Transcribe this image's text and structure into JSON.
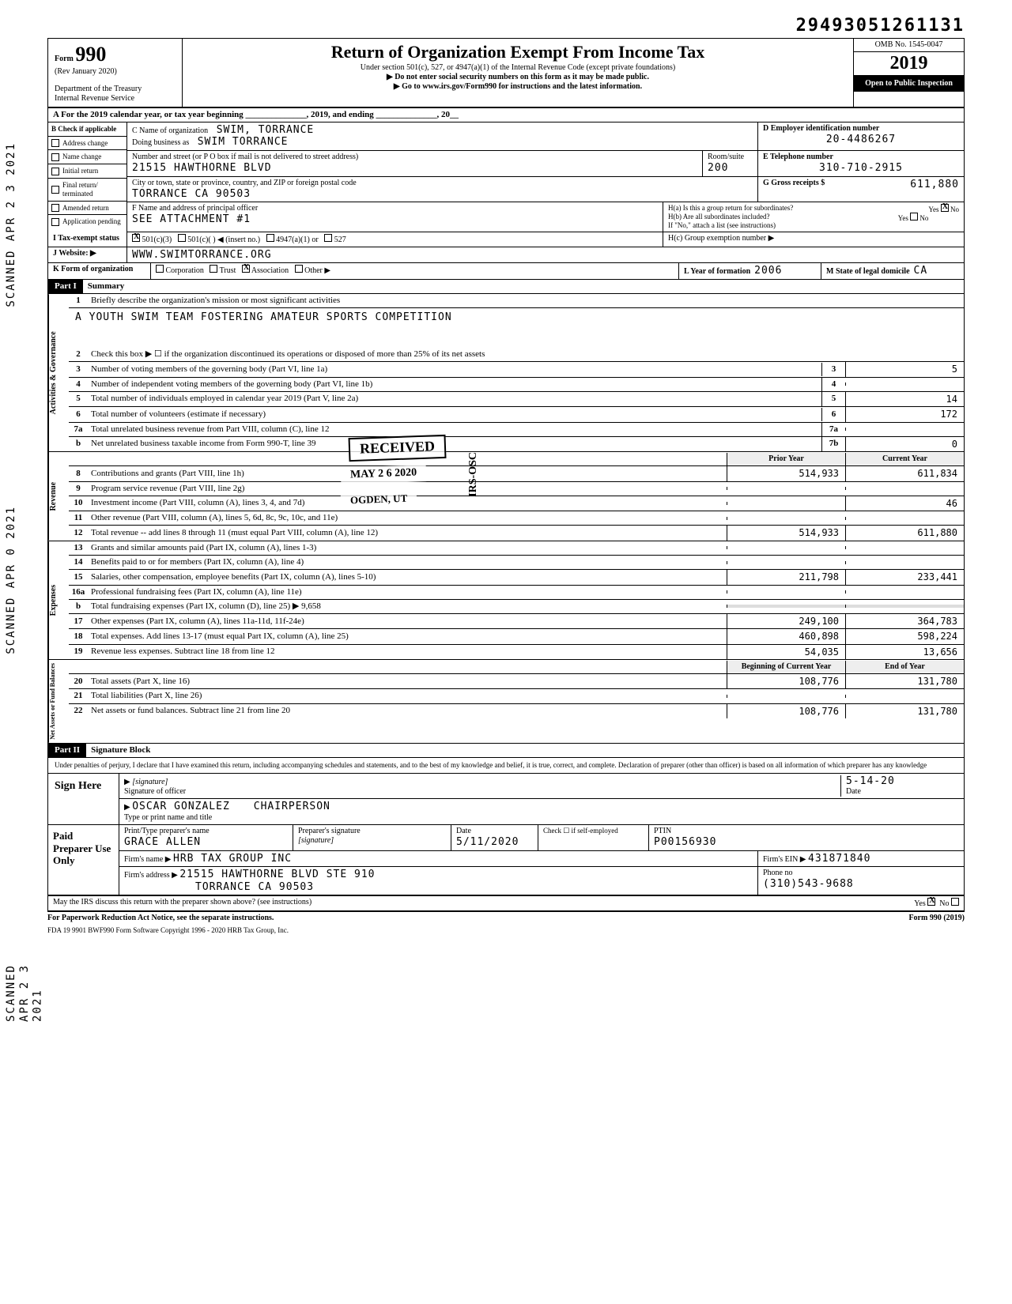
{
  "top_id": "29493051261131",
  "header": {
    "form_label": "Form",
    "form_number": "990",
    "rev": "(Rev January 2020)",
    "dept": "Department of the Treasury",
    "irs": "Internal Revenue Service",
    "title": "Return of Organization Exempt From Income Tax",
    "sub1": "Under section 501(c), 527, or 4947(a)(1) of the Internal Revenue Code (except private foundations)",
    "sub2": "▶ Do not enter social security numbers on this form as it may be made public.",
    "sub3": "▶ Go to www.irs.gov/Form990 for instructions and the latest information.",
    "omb": "OMB No. 1545-0047",
    "year": "2019",
    "open": "Open to Public Inspection"
  },
  "row_a": "A   For the 2019 calendar year, or tax year beginning ______________, 2019, and ending ______________, 20__",
  "col_b": {
    "header": "B Check if applicable",
    "items": [
      "Address change",
      "Name change",
      "Initial return",
      "Final return/ terminated",
      "Amended return",
      "Application pending"
    ]
  },
  "org": {
    "c_label": "C Name of organization",
    "name": "SWIM, TORRANCE",
    "dba_label": "Doing business as",
    "dba": "SWIM TORRANCE",
    "addr_label": "Number and street (or P O  box if mail is not delivered to street address)",
    "addr": "21515 HAWTHORNE BLVD",
    "room_label": "Room/suite",
    "room": "200",
    "city_label": "City or town, state or province, country, and ZIP or foreign postal code",
    "city": "TORRANCE CA 90503",
    "f_label": "F  Name and address of principal officer",
    "f_val": "SEE ATTACHMENT #1"
  },
  "d": {
    "label": "D Employer identification number",
    "val": "20-4486267"
  },
  "e": {
    "label": "E Telephone number",
    "val": "310-710-2915"
  },
  "g": {
    "label": "G Gross receipts $",
    "val": "611,880"
  },
  "h": {
    "a": "H(a)  Is this a group return for subordinates?",
    "b": "H(b)  Are all subordinates included?",
    "note": "If \"No,\" attach a list (see instructions)",
    "c": "H(c)  Group exemption number  ▶"
  },
  "i": {
    "label": "I   Tax-exempt status",
    "opts": [
      "501(c)(3)",
      "501(c)(",
      "4947(a)(1) or",
      "527"
    ],
    "insert": ") ◀ (insert no.)"
  },
  "j": {
    "label": "J  Website: ▶",
    "val": "WWW.SWIMTORRANCE.ORG"
  },
  "k": {
    "label": "K Form of organization",
    "opts": [
      "Corporation",
      "Trust",
      "Association",
      "Other ▶"
    ],
    "l_label": "L Year of formation",
    "l_val": "2006",
    "m_label": "M State of legal domicile",
    "m_val": "CA"
  },
  "part1": {
    "label": "Part I",
    "title": "Summary"
  },
  "mission": {
    "line1_num": "1",
    "line1": "Briefly describe the organization's mission or most significant activities",
    "text": "A YOUTH SWIM TEAM FOSTERING AMATEUR SPORTS COMPETITION"
  },
  "governance": {
    "label": "Activities & Governance",
    "rows": [
      {
        "n": "2",
        "desc": "Check this box ▶ ☐  if the organization discontinued its operations or disposed of more than 25% of its net assets"
      },
      {
        "n": "3",
        "desc": "Number of voting members of the governing body (Part VI, line 1a)",
        "box": "3",
        "v": "5"
      },
      {
        "n": "4",
        "desc": "Number of independent voting members of the governing body (Part VI, line 1b)",
        "box": "4",
        "v": ""
      },
      {
        "n": "5",
        "desc": "Total number of individuals employed in calendar year 2019 (Part V, line 2a)",
        "box": "5",
        "v": "14"
      },
      {
        "n": "6",
        "desc": "Total number of volunteers (estimate if necessary)",
        "box": "6",
        "v": "172"
      },
      {
        "n": "7a",
        "desc": "Total unrelated business revenue from Part VIII, column (C), line 12",
        "box": "7a",
        "v": ""
      },
      {
        "n": "b",
        "desc": "Net unrelated business taxable income from Form 990-T, line 39",
        "box": "7b",
        "v": "0"
      }
    ]
  },
  "revenue": {
    "label": "Revenue",
    "hdr_prior": "Prior Year",
    "hdr_curr": "Current Year",
    "rows": [
      {
        "n": "8",
        "desc": "Contributions and grants (Part VIII, line 1h)",
        "prior": "514,933",
        "curr": "611,834"
      },
      {
        "n": "9",
        "desc": "Program service revenue (Part VIII, line 2g)",
        "prior": "",
        "curr": ""
      },
      {
        "n": "10",
        "desc": "Investment income (Part VIII, column (A), lines 3, 4, and 7d)",
        "prior": "",
        "curr": "46"
      },
      {
        "n": "11",
        "desc": "Other revenue (Part VIII, column (A), lines 5, 6d, 8c, 9c, 10c, and 11e)",
        "prior": "",
        "curr": ""
      },
      {
        "n": "12",
        "desc": "Total revenue -- add lines 8 through 11 (must equal Part VIII, column (A), line 12)",
        "prior": "514,933",
        "curr": "611,880"
      }
    ]
  },
  "stamps": {
    "received": "RECEIVED",
    "date": "MAY 2 6 2020",
    "ogden": "OGDEN, UT",
    "irs_osc": "IRS-OSC",
    "side1": "SCANNED APR 2 3 2021",
    "side2": "SCANNED APR  0  2021",
    "side3": "SCANNED APR 2 3 2021"
  },
  "expenses": {
    "label": "Expenses",
    "rows": [
      {
        "n": "13",
        "desc": "Grants and similar amounts paid (Part IX, column (A), lines 1-3)",
        "prior": "",
        "curr": ""
      },
      {
        "n": "14",
        "desc": "Benefits paid to or for members (Part IX, column (A), line 4)",
        "prior": "",
        "curr": ""
      },
      {
        "n": "15",
        "desc": "Salaries, other compensation, employee benefits (Part IX, column (A), lines 5-10)",
        "prior": "211,798",
        "curr": "233,441"
      },
      {
        "n": "16a",
        "desc": "Professional fundraising fees (Part IX, column (A), line 11e)",
        "prior": "",
        "curr": ""
      },
      {
        "n": "b",
        "desc": "Total fundraising expenses (Part IX, column (D), line 25)   ▶            9,658",
        "prior": "shaded",
        "curr": "shaded"
      },
      {
        "n": "17",
        "desc": "Other expenses (Part IX, column (A), lines 11a-11d, 11f-24e)",
        "prior": "249,100",
        "curr": "364,783"
      },
      {
        "n": "18",
        "desc": "Total expenses. Add lines 13-17 (must equal Part IX, column (A), line 25)",
        "prior": "460,898",
        "curr": "598,224"
      },
      {
        "n": "19",
        "desc": "Revenue less expenses. Subtract line 18 from line 12",
        "prior": "54,035",
        "curr": "13,656"
      }
    ]
  },
  "netassets": {
    "label": "Net Assets or Fund Balances",
    "hdr_prior": "Beginning of Current Year",
    "hdr_curr": "End of Year",
    "rows": [
      {
        "n": "20",
        "desc": "Total assets (Part X, line 16)",
        "prior": "108,776",
        "curr": "131,780"
      },
      {
        "n": "21",
        "desc": "Total liabilities (Part X, line 26)",
        "prior": "",
        "curr": ""
      },
      {
        "n": "22",
        "desc": "Net assets or fund balances. Subtract line 21 from line 20",
        "prior": "108,776",
        "curr": "131,780"
      }
    ]
  },
  "part2": {
    "label": "Part II",
    "title": "Signature Block"
  },
  "perjury": "Under penalties of perjury, I declare that I have examined this return, including accompanying schedules and statements, and to the best of my knowledge and belief, it is true, correct, and complete. Declaration of preparer (other than officer) is based on all information of which preparer has any knowledge",
  "sign": {
    "here": "Sign Here",
    "sig_label": "Signature of officer",
    "date_label": "Date",
    "date": "5-14-20",
    "name": "OSCAR GONZALEZ",
    "title": "CHAIRPERSON",
    "type_label": "Type or print name and title"
  },
  "preparer": {
    "label": "Paid Preparer Use Only",
    "print_label": "Print/Type preparer's name",
    "name": "GRACE ALLEN",
    "sig_label": "Preparer's signature",
    "date_label": "Date",
    "date": "5/11/2020",
    "check_label": "Check ☐ if self-employed",
    "ptin_label": "PTIN",
    "ptin": "P00156930",
    "firm_label": "Firm's name  ▶",
    "firm": "HRB TAX GROUP INC",
    "ein_label": "Firm's EIN ▶",
    "ein": "431871840",
    "addr_label": "Firm's address  ▶",
    "addr1": "21515 HAWTHORNE BLVD STE 910",
    "addr2": "TORRANCE CA 90503",
    "phone_label": "Phone no",
    "phone": "(310)543-9688"
  },
  "discuss": "May the IRS discuss this return with the preparer shown above? (see instructions)",
  "footer": {
    "left": "For Paperwork Reduction Act Notice, see the separate instructions.",
    "right": "Form 990 (2019)",
    "sub": "FDA    19  9901      BWF990      Form Software Copyright 1996 - 2020 HRB Tax Group, Inc."
  }
}
